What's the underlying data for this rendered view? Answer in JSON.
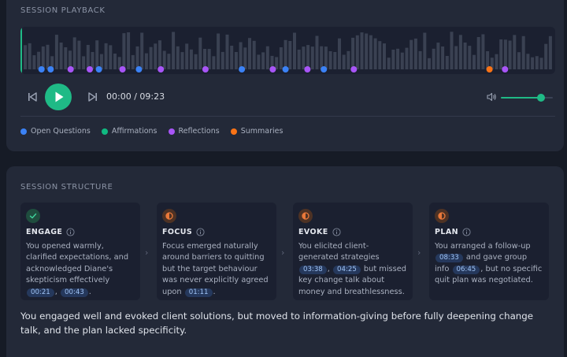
{
  "playback": {
    "section_title": "SESSION PLAYBACK",
    "current_time": "00:00",
    "separator": "/",
    "total_time": "09:23",
    "volume": 0.78,
    "progress": 0.0,
    "markers": [
      {
        "type": "open_question",
        "time": 11
      },
      {
        "type": "open_question",
        "time": 21
      },
      {
        "type": "reflection",
        "time": 43
      },
      {
        "type": "reflection",
        "time": 64
      },
      {
        "type": "open_question",
        "time": 74
      },
      {
        "type": "reflection",
        "time": 100
      },
      {
        "type": "open_question",
        "time": 118
      },
      {
        "type": "reflection",
        "time": 142
      },
      {
        "type": "reflection",
        "time": 191
      },
      {
        "type": "open_question",
        "time": 231
      },
      {
        "type": "reflection",
        "time": 265
      },
      {
        "type": "open_question",
        "time": 279
      },
      {
        "type": "reflection",
        "time": 303
      },
      {
        "type": "open_question",
        "time": 321
      },
      {
        "type": "reflection",
        "time": 354
      },
      {
        "type": "summary",
        "time": 503
      },
      {
        "type": "reflection",
        "time": 520
      }
    ],
    "legend": [
      {
        "key": "open_question",
        "label": "Open Questions",
        "color": "#3b82f6"
      },
      {
        "key": "affirmation",
        "label": "Affirmations",
        "color": "#10b981"
      },
      {
        "key": "reflection",
        "label": "Reflections",
        "color": "#a855f7"
      },
      {
        "key": "summary",
        "label": "Summaries",
        "color": "#f97316"
      }
    ]
  },
  "structure": {
    "section_title": "SESSION STRUCTURE",
    "stages": [
      {
        "name": "ENGAGE",
        "status": "complete",
        "text_parts": [
          {
            "t": "You opened warmly, clarified expectations, and acknowledged Diane's skepticism effectively "
          },
          {
            "ts": "00:21"
          },
          {
            "t": ", "
          },
          {
            "ts": "00:43"
          },
          {
            "t": "."
          }
        ]
      },
      {
        "name": "FOCUS",
        "status": "partial",
        "text_parts": [
          {
            "t": "Focus emerged naturally around barriers to quitting but the target behaviour was never explicitly agreed upon "
          },
          {
            "ts": "01:11"
          },
          {
            "t": "."
          }
        ]
      },
      {
        "name": "EVOKE",
        "status": "partial",
        "text_parts": [
          {
            "t": "You elicited client-generated strategies "
          },
          {
            "ts": "03:38"
          },
          {
            "t": ", "
          },
          {
            "ts": "04:25"
          },
          {
            "t": " but missed key change talk about money and breathlessness."
          }
        ]
      },
      {
        "name": "PLAN",
        "status": "partial",
        "text_parts": [
          {
            "t": "You arranged a follow-up "
          },
          {
            "ts": "08:33"
          },
          {
            "t": " and gave group info "
          },
          {
            "ts": "06:45"
          },
          {
            "t": ", but no specific quit plan was negotiated."
          }
        ]
      }
    ],
    "summary": "You engaged well and evoked client solutions, but moved to information-giving before fully deepening change talk, and the plan lacked specificity."
  },
  "colors": {
    "accent": "#1fba86",
    "partial": "#e9783a",
    "bar": "#3a4152",
    "timeline_bg": "#1b2030"
  },
  "icons": {
    "rewind": "skip-back-icon",
    "play": "play-icon",
    "forward": "skip-forward-icon",
    "volume": "volume-icon",
    "info": "info-icon",
    "complete": "check-icon",
    "partial": "half-circle-icon"
  }
}
